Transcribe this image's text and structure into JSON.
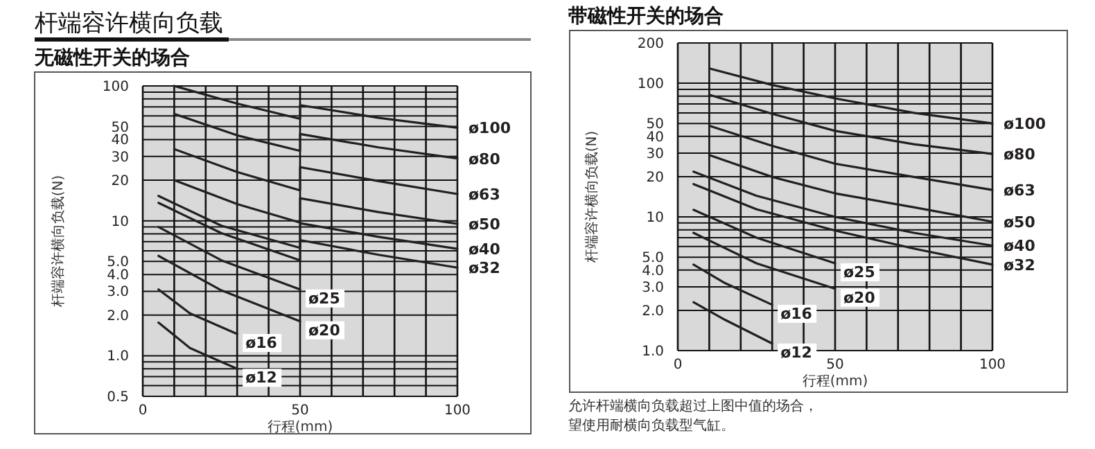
{
  "chart_data": [
    {
      "type": "line",
      "title": "杆端容许横向负载",
      "subtitle": "无磁性开关的场合",
      "xlabel": "行程(mm)",
      "ylabel": "杆端容许横向负载(N)",
      "log": "y",
      "grid": true,
      "xlim": [
        0,
        100
      ],
      "xticks": [
        0,
        {
          "value": 10,
          "label": null
        },
        {
          "value": 20,
          "label": null
        },
        {
          "value": 30,
          "label": null
        },
        {
          "value": 40,
          "label": null
        },
        50,
        {
          "value": 60,
          "label": null
        },
        {
          "value": 70,
          "label": null
        },
        {
          "value": 80,
          "label": null
        },
        {
          "value": 90,
          "label": null
        },
        100
      ],
      "ylim": [
        0.5,
        100
      ],
      "yticks": [
        0.5,
        {
          "value": 0.6,
          "label": null
        },
        {
          "value": 0.7,
          "label": null
        },
        {
          "value": 0.8,
          "label": null
        },
        {
          "value": 0.9,
          "label": null
        },
        {
          "value": 1,
          "label": "1.0"
        },
        {
          "value": 2,
          "label": "2.0"
        },
        {
          "value": 3,
          "label": "3.0"
        },
        {
          "value": 4,
          "label": "4.0"
        },
        {
          "value": 5,
          "label": "5.0"
        },
        {
          "value": 6,
          "label": null
        },
        {
          "value": 7,
          "label": null
        },
        {
          "value": 8,
          "label": null
        },
        {
          "value": 9,
          "label": null
        },
        10,
        20,
        30,
        40,
        50,
        {
          "value": 60,
          "label": null
        },
        {
          "value": 70,
          "label": null
        },
        {
          "value": 80,
          "label": null
        },
        {
          "value": 90,
          "label": null
        },
        100
      ],
      "series": [
        {
          "name": "ø100",
          "color": "#231f20",
          "x": [
            10,
            30,
            50,
            50,
            75,
            100
          ],
          "values": [
            100,
            74,
            57,
            72,
            58,
            49
          ]
        },
        {
          "name": "ø80",
          "color": "#231f20",
          "x": [
            10,
            30,
            50,
            50,
            75,
            100
          ],
          "values": [
            62,
            43,
            33,
            44,
            35,
            29
          ]
        },
        {
          "name": "ø63",
          "color": "#231f20",
          "x": [
            10,
            30,
            50,
            50,
            75,
            100
          ],
          "values": [
            34,
            23,
            16.8,
            25,
            19.7,
            15.8
          ]
        },
        {
          "name": "ø50",
          "color": "#231f20",
          "x": [
            10,
            30,
            50,
            50,
            75,
            100
          ],
          "values": [
            20,
            13.3,
            9.7,
            14.7,
            11.6,
            9.5
          ]
        },
        {
          "name": "ø40",
          "color": "#231f20",
          "x": [
            5,
            25,
            50,
            50,
            75,
            100
          ],
          "values": [
            15.3,
            9.2,
            6.3,
            9.6,
            7.6,
            6.2
          ]
        },
        {
          "name": "ø32",
          "color": "#231f20",
          "x": [
            5,
            25,
            50,
            50,
            75,
            100
          ],
          "values": [
            13.6,
            8.1,
            5.1,
            7.2,
            5.6,
            4.5
          ]
        },
        {
          "name": "ø25",
          "color": "#231f20",
          "x": [
            5,
            25,
            50
          ],
          "values": [
            9.0,
            5.1,
            3.1
          ]
        },
        {
          "name": "ø20",
          "color": "#231f20",
          "x": [
            5,
            25,
            50
          ],
          "values": [
            5.5,
            3.05,
            1.8
          ]
        },
        {
          "name": "ø16",
          "color": "#231f20",
          "x": [
            5,
            15,
            30
          ],
          "values": [
            3.1,
            2.06,
            1.45
          ]
        },
        {
          "name": "ø12",
          "color": "#231f20",
          "x": [
            5,
            15,
            30
          ],
          "values": [
            1.76,
            1.14,
            0.8
          ]
        }
      ]
    },
    {
      "type": "line",
      "title": "带磁性开关的场合",
      "xlabel": "行程(mm)",
      "ylabel": "杆端容许横向负载(N)",
      "log": "y",
      "grid": true,
      "annotations": [
        "允许杆端横向负载超过上图中值的场合，",
        "望使用耐横向负载型气缸。"
      ],
      "xlim": [
        0,
        100
      ],
      "xticks": [
        0,
        {
          "value": 10,
          "label": null
        },
        {
          "value": 20,
          "label": null
        },
        {
          "value": 30,
          "label": null
        },
        {
          "value": 40,
          "label": null
        },
        50,
        {
          "value": 60,
          "label": null
        },
        {
          "value": 70,
          "label": null
        },
        {
          "value": 80,
          "label": null
        },
        {
          "value": 90,
          "label": null
        },
        100
      ],
      "ylim": [
        1,
        200
      ],
      "yticks": [
        {
          "value": 1,
          "label": "1.0"
        },
        {
          "value": 2,
          "label": "2.0"
        },
        {
          "value": 3,
          "label": "3.0"
        },
        {
          "value": 4,
          "label": "4.0"
        },
        {
          "value": 5,
          "label": "5.0"
        },
        {
          "value": 6,
          "label": null
        },
        {
          "value": 7,
          "label": null
        },
        {
          "value": 8,
          "label": null
        },
        {
          "value": 9,
          "label": null
        },
        10,
        20,
        30,
        40,
        50,
        {
          "value": 60,
          "label": null
        },
        {
          "value": 70,
          "label": null
        },
        {
          "value": 80,
          "label": null
        },
        {
          "value": 90,
          "label": null
        },
        100,
        200
      ],
      "series": [
        {
          "name": "ø100",
          "color": "#231f20",
          "x": [
            10,
            30,
            50,
            75,
            100
          ],
          "values": [
            129,
            97,
            77,
            60,
            50
          ]
        },
        {
          "name": "ø80",
          "color": "#231f20",
          "x": [
            10,
            30,
            50,
            75,
            100
          ],
          "values": [
            82,
            59,
            44,
            35,
            29.6
          ]
        },
        {
          "name": "ø63",
          "color": "#231f20",
          "x": [
            10,
            30,
            50,
            75,
            100
          ],
          "values": [
            48,
            34,
            25,
            19.9,
            15.9
          ]
        },
        {
          "name": "ø50",
          "color": "#231f20",
          "x": [
            10,
            30,
            50,
            75,
            100
          ],
          "values": [
            29,
            19.9,
            15,
            11.8,
            9.2
          ]
        },
        {
          "name": "ø40",
          "color": "#231f20",
          "x": [
            5,
            25,
            50,
            75,
            100
          ],
          "values": [
            21.8,
            14.4,
            10,
            7.6,
            6.1
          ]
        },
        {
          "name": "ø32",
          "color": "#231f20",
          "x": [
            5,
            25,
            50,
            75,
            100
          ],
          "values": [
            17.6,
            11.4,
            7.9,
            5.8,
            4.4
          ]
        },
        {
          "name": "ø25",
          "color": "#231f20",
          "x": [
            5,
            25,
            50
          ],
          "values": [
            11.3,
            7.0,
            4.5
          ]
        },
        {
          "name": "ø20",
          "color": "#231f20",
          "x": [
            5,
            25,
            50
          ],
          "values": [
            7.6,
            4.5,
            2.9
          ]
        },
        {
          "name": "ø16",
          "color": "#231f20",
          "x": [
            5,
            15,
            30
          ],
          "values": [
            4.4,
            3.2,
            2.2
          ]
        },
        {
          "name": "ø12",
          "color": "#231f20",
          "x": [
            5,
            15,
            30
          ],
          "values": [
            2.3,
            1.7,
            1.13
          ]
        }
      ]
    }
  ]
}
